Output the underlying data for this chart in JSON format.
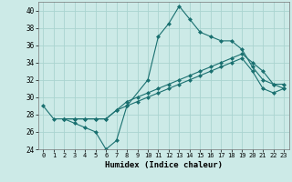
{
  "xlabel": "Humidex (Indice chaleur)",
  "background_color": "#cceae7",
  "grid_color": "#aad4d0",
  "line_color": "#1a7070",
  "xlim": [
    -0.5,
    23.5
  ],
  "ylim": [
    24,
    41
  ],
  "xticks": [
    0,
    1,
    2,
    3,
    4,
    5,
    6,
    7,
    8,
    9,
    10,
    11,
    12,
    13,
    14,
    15,
    16,
    17,
    18,
    19,
    20,
    21,
    22,
    23
  ],
  "yticks": [
    24,
    26,
    28,
    30,
    32,
    34,
    36,
    38,
    40
  ],
  "series": [
    {
      "x": [
        0,
        1,
        2,
        3,
        4,
        5,
        6,
        7,
        8,
        10,
        11,
        12,
        13,
        14,
        15,
        16,
        17,
        18,
        19,
        20,
        21,
        22,
        23
      ],
      "y": [
        29,
        27.5,
        27.5,
        27,
        26.5,
        26,
        24,
        25,
        29,
        32,
        37,
        38.5,
        40.5,
        39,
        37.5,
        37,
        36.5,
        36.5,
        35.5,
        33.5,
        32,
        31.5,
        31.5
      ]
    },
    {
      "x": [
        2,
        3,
        4,
        5,
        6,
        7,
        8,
        9,
        10,
        11,
        12,
        13,
        14,
        15,
        16,
        17,
        18,
        19,
        20,
        21,
        22,
        23
      ],
      "y": [
        27.5,
        27.5,
        27.5,
        27.5,
        27.5,
        28.5,
        29.5,
        30,
        30.5,
        31,
        31.5,
        32,
        32.5,
        33,
        33.5,
        34,
        34.5,
        35,
        34,
        33,
        31.5,
        31
      ]
    },
    {
      "x": [
        2,
        3,
        4,
        5,
        6,
        7,
        8,
        9,
        10,
        11,
        12,
        13,
        14,
        15,
        16,
        17,
        18,
        19,
        20,
        21,
        22,
        23
      ],
      "y": [
        27.5,
        27.5,
        27.5,
        27.5,
        27.5,
        28.5,
        29.0,
        29.5,
        30,
        30.5,
        31,
        31.5,
        32,
        32.5,
        33,
        33.5,
        34,
        34.5,
        33,
        31,
        30.5,
        31
      ]
    }
  ]
}
